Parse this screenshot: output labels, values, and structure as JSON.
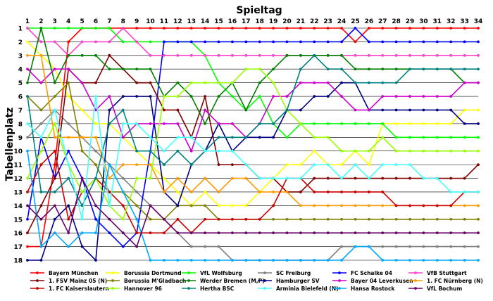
{
  "chart_data": {
    "type": "line",
    "title": "Spieltag",
    "ylabel": "Tabellenplatz",
    "x": [
      1,
      2,
      3,
      4,
      5,
      6,
      7,
      8,
      9,
      10,
      11,
      12,
      13,
      14,
      15,
      16,
      17,
      18,
      19,
      20,
      21,
      22,
      23,
      24,
      25,
      26,
      27,
      28,
      29,
      30,
      31,
      32,
      33,
      34
    ],
    "yticks": [
      1,
      2,
      3,
      4,
      5,
      6,
      7,
      8,
      9,
      10,
      11,
      12,
      13,
      14,
      15,
      16,
      17,
      18
    ],
    "ylim": [
      18,
      1
    ],
    "y_inverted": true,
    "grid": true,
    "legend_position": "bottom",
    "series": [
      {
        "name": "Bayern München",
        "color": "#ff0000",
        "values": [
          17,
          17,
          11,
          2,
          1,
          1,
          1,
          1,
          1,
          1,
          1,
          1,
          1,
          1,
          1,
          1,
          1,
          1,
          1,
          1,
          1,
          1,
          1,
          1,
          2,
          1,
          1,
          1,
          1,
          1,
          1,
          1,
          1,
          1
        ]
      },
      {
        "name": "Borussia Dortmund",
        "color": "#ffff00",
        "values": [
          2,
          3,
          4,
          6,
          7,
          8,
          8,
          9,
          10,
          11,
          12,
          13,
          14,
          13,
          14,
          14,
          14,
          13,
          12,
          11,
          11,
          10,
          11,
          11,
          10,
          11,
          8,
          8,
          8,
          8,
          8,
          8,
          7,
          7
        ]
      },
      {
        "name": "VfL Wolfsburg",
        "color": "#00ff00",
        "values": [
          1,
          1,
          1,
          1,
          1,
          1,
          1,
          2,
          2,
          2,
          2,
          2,
          2,
          3,
          5,
          6,
          7,
          6,
          8,
          9,
          8,
          8,
          8,
          8,
          8,
          8,
          8,
          9,
          9,
          9,
          9,
          9,
          9,
          9
        ]
      },
      {
        "name": "SC Freiburg",
        "color": "#808080",
        "values": [
          9,
          8,
          7,
          8,
          9,
          10,
          11,
          12,
          13,
          14,
          15,
          16,
          17,
          17,
          17,
          18,
          18,
          18,
          18,
          18,
          18,
          18,
          18,
          17,
          17,
          17,
          17,
          17,
          17,
          17,
          17,
          17,
          17,
          17
        ]
      },
      {
        "name": "FC Schalke 04",
        "color": "#0000ff",
        "values": [
          15,
          9,
          12,
          10,
          12,
          15,
          16,
          17,
          16,
          10,
          2,
          2,
          2,
          2,
          2,
          2,
          2,
          2,
          2,
          2,
          2,
          2,
          2,
          2,
          1,
          2,
          2,
          2,
          2,
          2,
          2,
          2,
          2,
          2
        ]
      },
      {
        "name": "VfB Stuttgart",
        "color": "#ff44cc",
        "values": [
          1,
          2,
          2,
          3,
          2,
          2,
          2,
          1,
          2,
          3,
          3,
          3,
          3,
          3,
          3,
          3,
          3,
          3,
          3,
          3,
          3,
          3,
          3,
          3,
          3,
          3,
          3,
          3,
          3,
          3,
          3,
          3,
          3,
          3
        ]
      },
      {
        "name": "1. FSV Mainz 05 (N)",
        "color": "#800000",
        "values": [
          16,
          14,
          12,
          4,
          5,
          5,
          3,
          4,
          5,
          5,
          7,
          7,
          9,
          6,
          11,
          11,
          11,
          12,
          12,
          13,
          13,
          12,
          12,
          12,
          12,
          12,
          12,
          12,
          12,
          12,
          12,
          12,
          12,
          11
        ]
      },
      {
        "name": "Borussia M'Gladbach",
        "color": "#808000",
        "values": [
          6,
          7,
          6,
          5,
          10,
          11,
          13,
          13,
          14,
          15,
          15,
          14,
          14,
          14,
          15,
          15,
          15,
          15,
          15,
          15,
          15,
          15,
          15,
          15,
          15,
          15,
          15,
          15,
          15,
          15,
          15,
          15,
          15,
          15
        ]
      },
      {
        "name": "Werder Bremen (M,P)",
        "color": "#008000",
        "values": [
          5,
          1,
          5,
          3,
          3,
          3,
          4,
          4,
          4,
          4,
          6,
          5,
          6,
          8,
          6,
          5,
          7,
          5,
          4,
          3,
          3,
          3,
          3,
          3,
          4,
          4,
          4,
          4,
          4,
          4,
          4,
          4,
          5,
          5
        ]
      },
      {
        "name": "Hamburger SV",
        "color": "#000080",
        "values": [
          18,
          18,
          15,
          14,
          17,
          18,
          7,
          6,
          6,
          6,
          13,
          14,
          11,
          10,
          8,
          10,
          9,
          9,
          9,
          7,
          7,
          6,
          6,
          5,
          5,
          7,
          7,
          7,
          7,
          7,
          7,
          7,
          8,
          8
        ]
      },
      {
        "name": "Bayer 04 Leverkusen",
        "color": "#cc00cc",
        "values": [
          4,
          5,
          4,
          4,
          5,
          7,
          6,
          9,
          8,
          8,
          8,
          8,
          10,
          7,
          8,
          8,
          9,
          8,
          6,
          6,
          5,
          5,
          5,
          6,
          7,
          7,
          6,
          6,
          6,
          6,
          6,
          6,
          5,
          5
        ]
      },
      {
        "name": "1. FC Nürnberg (N)",
        "color": "#ff9900",
        "values": [
          3,
          3,
          9,
          9,
          9,
          9,
          12,
          11,
          11,
          11,
          13,
          12,
          13,
          12,
          13,
          12,
          12,
          13,
          13,
          13,
          14,
          14,
          14,
          14,
          14,
          14,
          14,
          14,
          14,
          14,
          14,
          14,
          14,
          14
        ]
      },
      {
        "name": "1. FC Kaiserslautern",
        "color": "#cc0000",
        "values": [
          13,
          11,
          10,
          15,
          13,
          12,
          13,
          14,
          16,
          16,
          16,
          15,
          16,
          15,
          15,
          15,
          15,
          15,
          14,
          12,
          12,
          13,
          13,
          13,
          13,
          13,
          13,
          14,
          14,
          14,
          14,
          14,
          13,
          13
        ]
      },
      {
        "name": "Hannover 96",
        "color": "#99ff00",
        "values": [
          12,
          10,
          8,
          11,
          13,
          12,
          14,
          15,
          12,
          12,
          6,
          6,
          5,
          5,
          5,
          5,
          4,
          4,
          5,
          7,
          8,
          9,
          9,
          10,
          10,
          10,
          9,
          10,
          10,
          10,
          10,
          10,
          10,
          10
        ]
      },
      {
        "name": "Hertha BSC",
        "color": "#008080",
        "values": [
          6,
          13,
          13,
          12,
          14,
          12,
          8,
          7,
          10,
          10,
          11,
          10,
          11,
          10,
          9,
          9,
          9,
          8,
          8,
          7,
          4,
          3,
          4,
          4,
          5,
          5,
          5,
          5,
          4,
          4,
          4,
          4,
          4,
          4
        ]
      },
      {
        "name": "Arminia Bielefeld (N)",
        "color": "#44ffff",
        "values": [
          8,
          9,
          7,
          11,
          15,
          6,
          14,
          8,
          8,
          9,
          10,
          9,
          9,
          10,
          10,
          10,
          11,
          12,
          12,
          12,
          12,
          11,
          11,
          12,
          11,
          12,
          11,
          11,
          11,
          12,
          12,
          13,
          13,
          13
        ]
      },
      {
        "name": "Hansa Rostock",
        "color": "#00aaff",
        "values": [
          10,
          17,
          16,
          17,
          16,
          16,
          11,
          13,
          15,
          18,
          18,
          18,
          18,
          18,
          18,
          18,
          18,
          18,
          18,
          18,
          18,
          18,
          18,
          18,
          17,
          17,
          18,
          18,
          18,
          18,
          18,
          18,
          18,
          18
        ]
      },
      {
        "name": "VfL Bochum",
        "color": "#660066",
        "values": [
          14,
          15,
          14,
          16,
          12,
          14,
          15,
          16,
          17,
          14,
          15,
          16,
          16,
          16,
          16,
          16,
          16,
          16,
          16,
          16,
          16,
          16,
          16,
          16,
          16,
          16,
          16,
          16,
          16,
          16,
          16,
          16,
          16,
          16
        ]
      }
    ]
  }
}
